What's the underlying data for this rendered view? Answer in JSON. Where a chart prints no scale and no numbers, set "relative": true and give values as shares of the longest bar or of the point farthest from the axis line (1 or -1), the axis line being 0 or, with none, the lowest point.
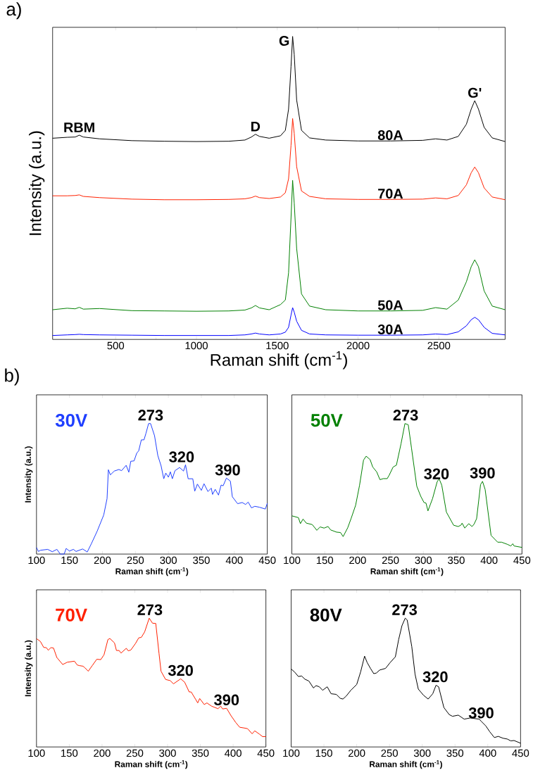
{
  "chart_data": [
    {
      "type": "line",
      "title": "a)",
      "xlabel": "Raman shift (cm$^{-1}$)",
      "ylabel": "Intensity (a.u.)",
      "relative": true,
      "xlim": [
        110,
        2910
      ],
      "xticks": [
        500,
        1000,
        1500,
        2000,
        2500
      ],
      "x": [
        110,
        200,
        250,
        275,
        300,
        400,
        600,
        800,
        1000,
        1200,
        1300,
        1340,
        1365,
        1390,
        1450,
        1520,
        1550,
        1570,
        1585,
        1595,
        1605,
        1620,
        1650,
        1700,
        1800,
        2000,
        2200,
        2400,
        2480,
        2550,
        2620,
        2670,
        2700,
        2722,
        2745,
        2780,
        2830,
        2910
      ],
      "series": [
        {
          "name": "80A",
          "color": "#000000",
          "values": [
            0.664,
            0.667,
            0.668,
            0.674,
            0.668,
            0.662,
            0.656,
            0.654,
            0.653,
            0.654,
            0.658,
            0.668,
            0.677,
            0.67,
            0.664,
            0.672,
            0.69,
            0.76,
            0.9,
            1.0,
            0.94,
            0.79,
            0.69,
            0.665,
            0.658,
            0.655,
            0.655,
            0.657,
            0.662,
            0.658,
            0.67,
            0.71,
            0.76,
            0.788,
            0.76,
            0.7,
            0.665,
            0.653
          ]
        },
        {
          "name": "70A",
          "color": "#ff2000",
          "values": [
            0.474,
            0.474,
            0.475,
            0.477,
            0.472,
            0.468,
            0.463,
            0.461,
            0.461,
            0.462,
            0.464,
            0.468,
            0.473,
            0.468,
            0.465,
            0.47,
            0.484,
            0.53,
            0.64,
            0.729,
            0.68,
            0.57,
            0.49,
            0.472,
            0.464,
            0.462,
            0.462,
            0.463,
            0.467,
            0.464,
            0.475,
            0.51,
            0.55,
            0.569,
            0.55,
            0.5,
            0.47,
            0.461
          ]
        },
        {
          "name": "50A",
          "color": "#008000",
          "values": [
            0.098,
            0.103,
            0.101,
            0.106,
            0.1,
            0.102,
            0.095,
            0.094,
            0.093,
            0.094,
            0.097,
            0.104,
            0.112,
            0.104,
            0.098,
            0.115,
            0.13,
            0.22,
            0.4,
            0.525,
            0.45,
            0.3,
            0.15,
            0.11,
            0.098,
            0.094,
            0.094,
            0.096,
            0.105,
            0.1,
            0.13,
            0.19,
            0.24,
            0.263,
            0.24,
            0.16,
            0.11,
            0.098
          ]
        },
        {
          "name": "30A",
          "color": "#0000ff",
          "values": [
            0.013,
            0.015,
            0.016,
            0.017,
            0.016,
            0.015,
            0.014,
            0.013,
            0.013,
            0.013,
            0.015,
            0.018,
            0.021,
            0.018,
            0.015,
            0.018,
            0.024,
            0.04,
            0.08,
            0.105,
            0.09,
            0.06,
            0.03,
            0.018,
            0.015,
            0.014,
            0.014,
            0.015,
            0.018,
            0.016,
            0.025,
            0.045,
            0.065,
            0.073,
            0.065,
            0.04,
            0.02,
            0.015
          ]
        }
      ],
      "annotations": [
        {
          "text": "RBM",
          "x": 275,
          "y": 0.674
        },
        {
          "text": "D",
          "x": 1365,
          "y": 0.677
        },
        {
          "text": "G",
          "x": 1595,
          "y": 1.0
        },
        {
          "text": "G'",
          "x": 2722,
          "y": 0.788
        }
      ]
    },
    {
      "type": "line",
      "title": "b)",
      "xlabel": "Raman shift (cm$^{-1}$)",
      "ylabel": "Intensity (a.u.)",
      "relative": true,
      "xlim": [
        100,
        450
      ],
      "xticks": [
        100,
        150,
        200,
        250,
        300,
        350,
        400,
        450
      ],
      "series": [
        {
          "name": "30V",
          "color": "#1f3fff",
          "x": [
            100,
            103,
            106,
            117,
            124,
            131,
            136,
            142,
            145,
            150,
            156,
            160,
            170,
            177,
            183,
            192,
            202,
            207,
            209,
            212,
            218,
            225,
            229,
            236,
            240,
            243,
            248,
            252,
            255,
            259,
            263,
            266,
            270,
            273,
            279,
            284,
            289,
            293,
            296,
            300,
            303,
            306,
            310,
            317,
            323,
            326,
            330,
            337,
            340,
            344,
            350,
            354,
            360,
            365,
            367,
            371,
            376,
            380,
            383,
            388,
            394,
            397,
            405,
            412,
            417,
            421,
            426,
            431,
            438,
            447,
            450
          ],
          "values": [
            0.05,
            0.02,
            0.029,
            0.036,
            0.018,
            0.036,
            0.0,
            0.0,
            0.043,
            0.023,
            0.036,
            0.02,
            0.039,
            0.016,
            0.077,
            0.175,
            0.3,
            0.425,
            0.646,
            0.607,
            0.636,
            0.648,
            0.639,
            0.68,
            0.627,
            0.711,
            0.714,
            0.773,
            0.791,
            0.875,
            0.875,
            0.925,
            1.0,
            1.0,
            0.907,
            0.755,
            0.675,
            0.577,
            0.621,
            0.589,
            0.63,
            0.577,
            0.639,
            0.663,
            0.636,
            0.684,
            0.577,
            0.577,
            0.482,
            0.536,
            0.488,
            0.539,
            0.479,
            0.505,
            0.457,
            0.496,
            0.452,
            0.529,
            0.523,
            0.582,
            0.559,
            0.439,
            0.386,
            0.395,
            0.38,
            0.398,
            0.354,
            0.366,
            0.359,
            0.345,
            0.389
          ]
        }
      ],
      "annotations": [
        {
          "text": "273",
          "x": 273,
          "y": 1.0
        },
        {
          "text": "320",
          "x": 320,
          "y": 0.68
        },
        {
          "text": "390",
          "x": 390,
          "y": 0.58
        }
      ]
    },
    {
      "type": "line",
      "xlabel": "Raman shift (cm$^{-1}$)",
      "relative": true,
      "xlim": [
        100,
        450
      ],
      "xticks": [
        100,
        150,
        200,
        250,
        300,
        350,
        400,
        450
      ],
      "series": [
        {
          "name": "50V",
          "color": "#008000",
          "x": [
            100,
            110,
            113,
            117,
            122,
            131,
            138,
            143,
            149,
            155,
            159,
            168,
            174,
            178,
            185,
            190,
            197,
            203,
            209,
            213,
            219,
            223,
            229,
            234,
            239,
            245,
            248,
            254,
            259,
            266,
            272,
            277,
            282,
            290,
            296,
            301,
            304,
            307,
            314,
            321,
            324,
            328,
            335,
            346,
            353,
            357,
            359,
            363,
            369,
            374,
            377,
            381,
            387,
            390,
            394,
            403,
            413,
            419,
            428,
            433,
            436,
            438,
            450
          ],
          "values": [
            0.293,
            0.279,
            0.233,
            0.268,
            0.237,
            0.226,
            0.182,
            0.208,
            0.199,
            0.211,
            0.185,
            0.168,
            0.165,
            0.134,
            0.202,
            0.271,
            0.374,
            0.528,
            0.72,
            0.75,
            0.724,
            0.667,
            0.63,
            0.57,
            0.578,
            0.578,
            0.604,
            0.667,
            0.681,
            0.844,
            1.0,
            0.991,
            0.811,
            0.52,
            0.443,
            0.395,
            0.391,
            0.331,
            0.425,
            0.554,
            0.576,
            0.528,
            0.322,
            0.221,
            0.211,
            0.221,
            0.237,
            0.199,
            0.233,
            0.211,
            0.228,
            0.271,
            0.532,
            0.557,
            0.494,
            0.143,
            0.091,
            0.091,
            0.074,
            0.062,
            0.079,
            0.062,
            0.051
          ]
        }
      ],
      "annotations": [
        {
          "text": "273",
          "x": 273,
          "y": 1.0
        },
        {
          "text": "320",
          "x": 320,
          "y": 0.55
        },
        {
          "text": "390",
          "x": 390,
          "y": 0.557
        }
      ]
    },
    {
      "type": "line",
      "xlabel": "Raman shift (cm$^{-1}$)",
      "ylabel": "Intensity (a.u.)",
      "relative": true,
      "xlim": [
        100,
        450
      ],
      "xticks": [
        100,
        150,
        200,
        250,
        300,
        350,
        400,
        450
      ],
      "series": [
        {
          "name": "70V",
          "color": "#ff2000",
          "x": [
            100,
            106,
            111,
            115,
            118,
            122,
            126,
            131,
            140,
            147,
            158,
            162,
            165,
            171,
            174,
            179,
            185,
            192,
            198,
            203,
            209,
            212,
            219,
            222,
            226,
            229,
            237,
            240,
            244,
            251,
            256,
            260,
            265,
            272,
            277,
            282,
            287,
            290,
            297,
            304,
            309,
            320,
            326,
            333,
            336,
            343,
            346,
            349,
            356,
            360,
            367,
            377,
            381,
            384,
            390,
            397,
            404,
            410,
            417,
            422,
            429,
            433,
            440,
            445,
            450
          ],
          "values": [
            0.841,
            0.819,
            0.773,
            0.771,
            0.751,
            0.771,
            0.768,
            0.695,
            0.64,
            0.658,
            0.666,
            0.637,
            0.632,
            0.627,
            0.614,
            0.588,
            0.631,
            0.681,
            0.678,
            0.715,
            0.834,
            0.842,
            0.808,
            0.749,
            0.749,
            0.729,
            0.766,
            0.746,
            0.753,
            0.803,
            0.847,
            0.851,
            0.893,
            1.0,
            0.961,
            0.959,
            0.724,
            0.588,
            0.524,
            0.515,
            0.49,
            0.529,
            0.503,
            0.427,
            0.427,
            0.368,
            0.342,
            0.376,
            0.329,
            0.342,
            0.317,
            0.297,
            0.317,
            0.295,
            0.3,
            0.241,
            0.19,
            0.153,
            0.147,
            0.142,
            0.102,
            0.125,
            0.1,
            0.08,
            0.08
          ]
        }
      ],
      "annotations": [
        {
          "text": "273",
          "x": 273,
          "y": 1.0
        },
        {
          "text": "320",
          "x": 320,
          "y": 0.529
        },
        {
          "text": "390",
          "x": 390,
          "y": 0.3
        }
      ]
    },
    {
      "type": "line",
      "xlabel": "Raman shift (cm$^{-1}$)",
      "relative": true,
      "xlim": [
        100,
        450
      ],
      "xticks": [
        100,
        150,
        200,
        250,
        300,
        350,
        400,
        450
      ],
      "series": [
        {
          "name": "80V",
          "color": "#000000",
          "x": [
            100,
            105,
            111,
            116,
            121,
            127,
            134,
            138,
            143,
            148,
            155,
            161,
            169,
            175,
            179,
            184,
            191,
            200,
            206,
            212,
            216,
            221,
            226,
            230,
            235,
            244,
            251,
            259,
            264,
            269,
            274,
            277,
            284,
            289,
            294,
            302,
            309,
            316,
            321,
            325,
            333,
            341,
            346,
            355,
            364,
            373,
            387,
            390,
            397,
            403,
            410,
            416,
            423,
            430,
            435,
            440,
            450
          ],
          "values": [
            0.605,
            0.583,
            0.547,
            0.551,
            0.526,
            0.512,
            0.458,
            0.476,
            0.467,
            0.44,
            0.467,
            0.413,
            0.408,
            0.377,
            0.372,
            0.395,
            0.44,
            0.485,
            0.583,
            0.705,
            0.655,
            0.61,
            0.569,
            0.574,
            0.597,
            0.61,
            0.655,
            0.7,
            0.834,
            0.941,
            1.0,
            0.986,
            0.78,
            0.565,
            0.449,
            0.401,
            0.372,
            0.413,
            0.479,
            0.467,
            0.306,
            0.252,
            0.238,
            0.247,
            0.216,
            0.225,
            0.216,
            0.199,
            0.163,
            0.118,
            0.073,
            0.082,
            0.068,
            0.061,
            0.047,
            0.05,
            0.029
          ]
        }
      ],
      "annotations": [
        {
          "text": "273",
          "x": 273,
          "y": 1.0
        },
        {
          "text": "320",
          "x": 320,
          "y": 0.479
        },
        {
          "text": "390",
          "x": 390,
          "y": 0.199
        }
      ]
    }
  ]
}
